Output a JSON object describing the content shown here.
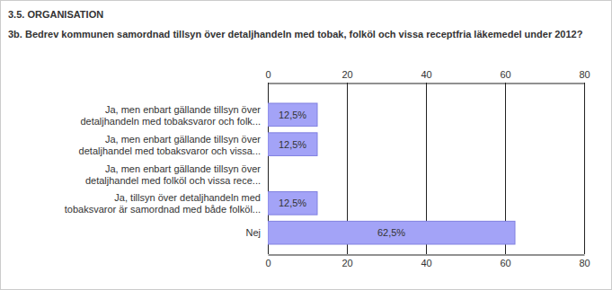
{
  "chart_data": {
    "type": "bar",
    "orientation": "horizontal",
    "title": "3.5. ORGANISATION",
    "subtitle": "3b. Bedrev kommunen samordnad tillsyn över detaljhandeln med tobak, folköl och vissa receptfria läkemedel under 2012?",
    "categories": [
      "Ja, men enbart gällande tillsyn över detaljhandeln med tobaksvaror och folk...",
      "Ja, men enbart gällande tillsyn över detaljhandel med tobaksvaror och vissa...",
      "Ja, men enbart gällande tillsyn över detaljhandel med folköl och vissa rece...",
      "Ja, tillsyn över detaljhandeln med tobaksvaror är samordnad med både folköl...",
      "Nej"
    ],
    "values": [
      12.5,
      12.5,
      0,
      12.5,
      62.5
    ],
    "value_labels": [
      "12,5%",
      "12,5%",
      null,
      "12,5%",
      "62,5%"
    ],
    "data_labels": true,
    "color": "#a3a3f7",
    "xlim": [
      0,
      80
    ],
    "xticks": [
      0,
      20,
      40,
      60,
      80
    ],
    "grid": true
  }
}
